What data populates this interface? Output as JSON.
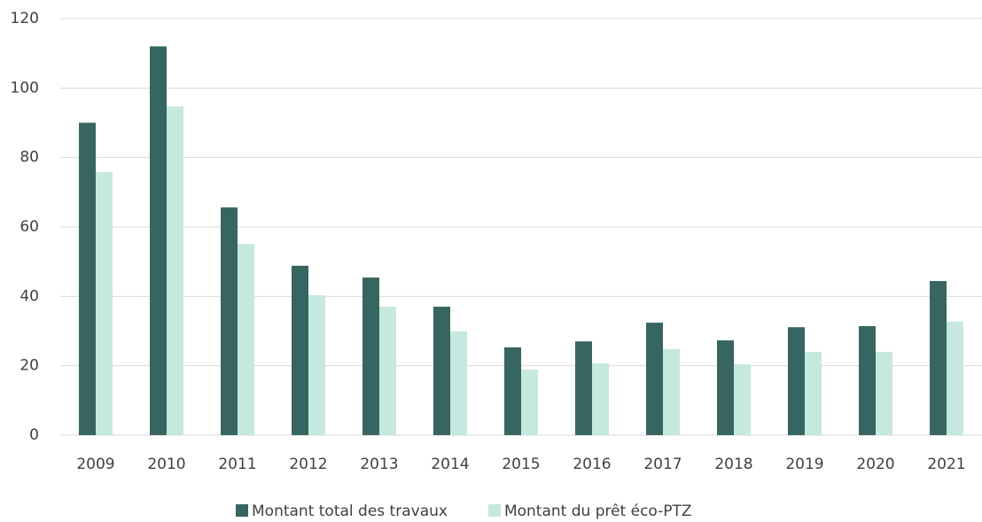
{
  "chart_data": {
    "type": "bar",
    "categories": [
      "2009",
      "2010",
      "2011",
      "2012",
      "2013",
      "2014",
      "2015",
      "2016",
      "2017",
      "2018",
      "2019",
      "2020",
      "2021"
    ],
    "series": [
      {
        "name": "Montant total des travaux",
        "color": "#376660",
        "values": [
          90,
          112,
          65.6,
          48.8,
          45.4,
          37,
          25.3,
          27,
          32.4,
          27.3,
          31.1,
          31.4,
          44.4
        ]
      },
      {
        "name": "Montant du prêt éco-PTZ",
        "color": "#c5e9de",
        "values": [
          75.8,
          94.7,
          55.1,
          40.3,
          37,
          29.9,
          18.9,
          20.7,
          24.8,
          20.4,
          24,
          24,
          32.7
        ]
      }
    ],
    "ylim": [
      0,
      120
    ],
    "yticks": [
      0,
      20,
      40,
      60,
      80,
      100,
      120
    ],
    "grid": true,
    "legend": "bottom"
  }
}
